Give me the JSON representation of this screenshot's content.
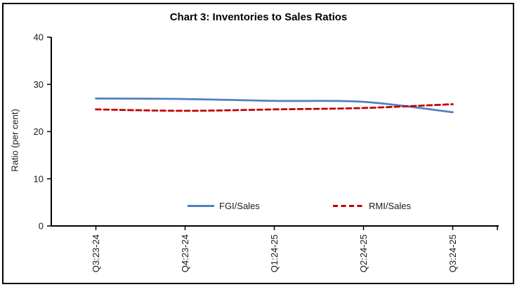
{
  "chart_data": {
    "type": "line",
    "title": "Chart 3: Inventories to Sales Ratios",
    "categories": [
      "Q3:23-24",
      "Q4:23-24",
      "Q1:24-25",
      "Q2:24-25",
      "Q3:24-25"
    ],
    "series": [
      {
        "name": "FGI/Sales",
        "values": [
          27.0,
          26.9,
          26.5,
          26.3,
          24.1
        ],
        "color": "#4F81BD",
        "style": "solid"
      },
      {
        "name": "RMI/Sales",
        "values": [
          24.7,
          24.4,
          24.7,
          25.0,
          25.8
        ],
        "color": "#C00000",
        "style": "dashed"
      }
    ],
    "xlabel": "",
    "ylabel": "Ratio (per cent)",
    "ylim": [
      0,
      40
    ],
    "yticks": [
      0,
      10,
      20,
      30,
      40
    ],
    "grid": false,
    "smoothed": true,
    "legend_position": "bottom-inside",
    "axis_color": "#000000",
    "tick_label_color": "#1a1a1a"
  }
}
